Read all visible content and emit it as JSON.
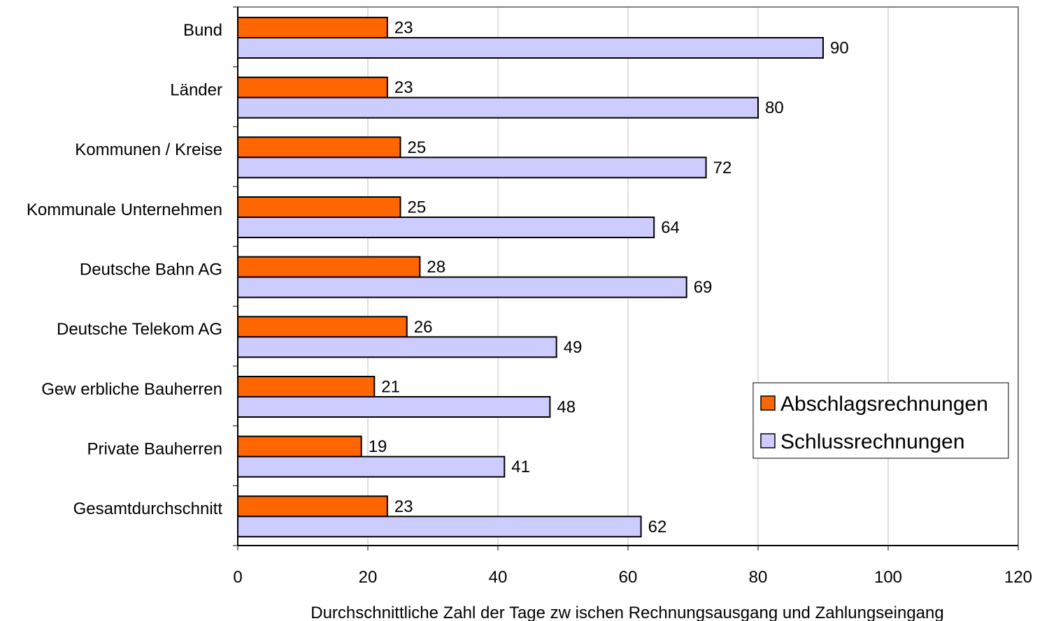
{
  "chart_data": {
    "type": "bar",
    "orientation": "horizontal",
    "categories": [
      "Bund",
      "Länder",
      "Kommunen / Kreise",
      "Kommunale Unternehmen",
      "Deutsche Bahn AG",
      "Deutsche Telekom AG",
      "Gew erbliche Bauherren",
      "Private Bauherren",
      "Gesamtdurchschnitt"
    ],
    "series": [
      {
        "name": "Abschlagsrechnungen",
        "color": "#ff6600",
        "values": [
          23,
          23,
          25,
          25,
          28,
          26,
          21,
          19,
          23
        ]
      },
      {
        "name": "Schlussrechnungen",
        "color": "#ccccff",
        "values": [
          90,
          80,
          72,
          64,
          69,
          49,
          48,
          41,
          62
        ]
      }
    ],
    "title": "",
    "xlabel": "Durchschnittliche Zahl der Tage zw ischen Rechnungsausgang und Zahlungseingang",
    "ylabel": "",
    "xlim": [
      0,
      120
    ],
    "xticks": [
      0,
      20,
      40,
      60,
      80,
      100,
      120
    ],
    "grid": true,
    "legend_position": "right"
  }
}
